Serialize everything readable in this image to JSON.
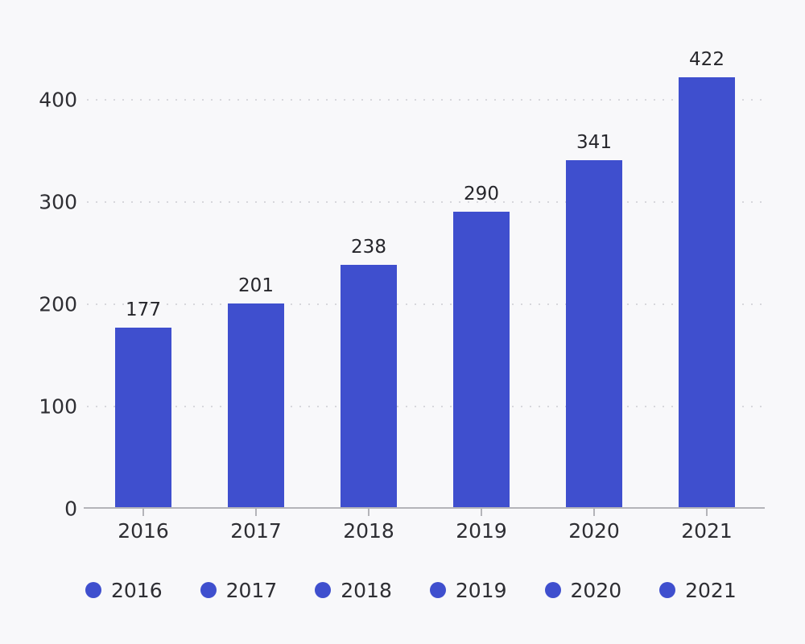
{
  "figure": {
    "title": "",
    "background_color": "#f8f8fa",
    "text_color": "#2e2e33",
    "axis_color": "#b4b4b9",
    "grid_color": "#d7d7dc",
    "accent_color": "#3F4FCE"
  },
  "chart_data": {
    "type": "bar",
    "categories": [
      "2016",
      "2017",
      "2018",
      "2019",
      "2020",
      "2021"
    ],
    "values": [
      177,
      201,
      238,
      290,
      341,
      422
    ],
    "value_labels": [
      "177",
      "201",
      "238",
      "290",
      "341",
      "422"
    ],
    "bar_color": "#3F4FCE",
    "title": "",
    "xlabel": "",
    "ylabel": "",
    "yticks": [
      0,
      100,
      200,
      300,
      400
    ],
    "ylim": [
      0,
      450
    ],
    "grid": "horizontal-dotted",
    "legend_position": "bottom",
    "legend": [
      {
        "label": "2016",
        "color": "#3F4FCE"
      },
      {
        "label": "2017",
        "color": "#3F4FCE"
      },
      {
        "label": "2018",
        "color": "#3F4FCE"
      },
      {
        "label": "2019",
        "color": "#3F4FCE"
      },
      {
        "label": "2020",
        "color": "#3F4FCE"
      },
      {
        "label": "2021",
        "color": "#3F4FCE"
      }
    ]
  }
}
